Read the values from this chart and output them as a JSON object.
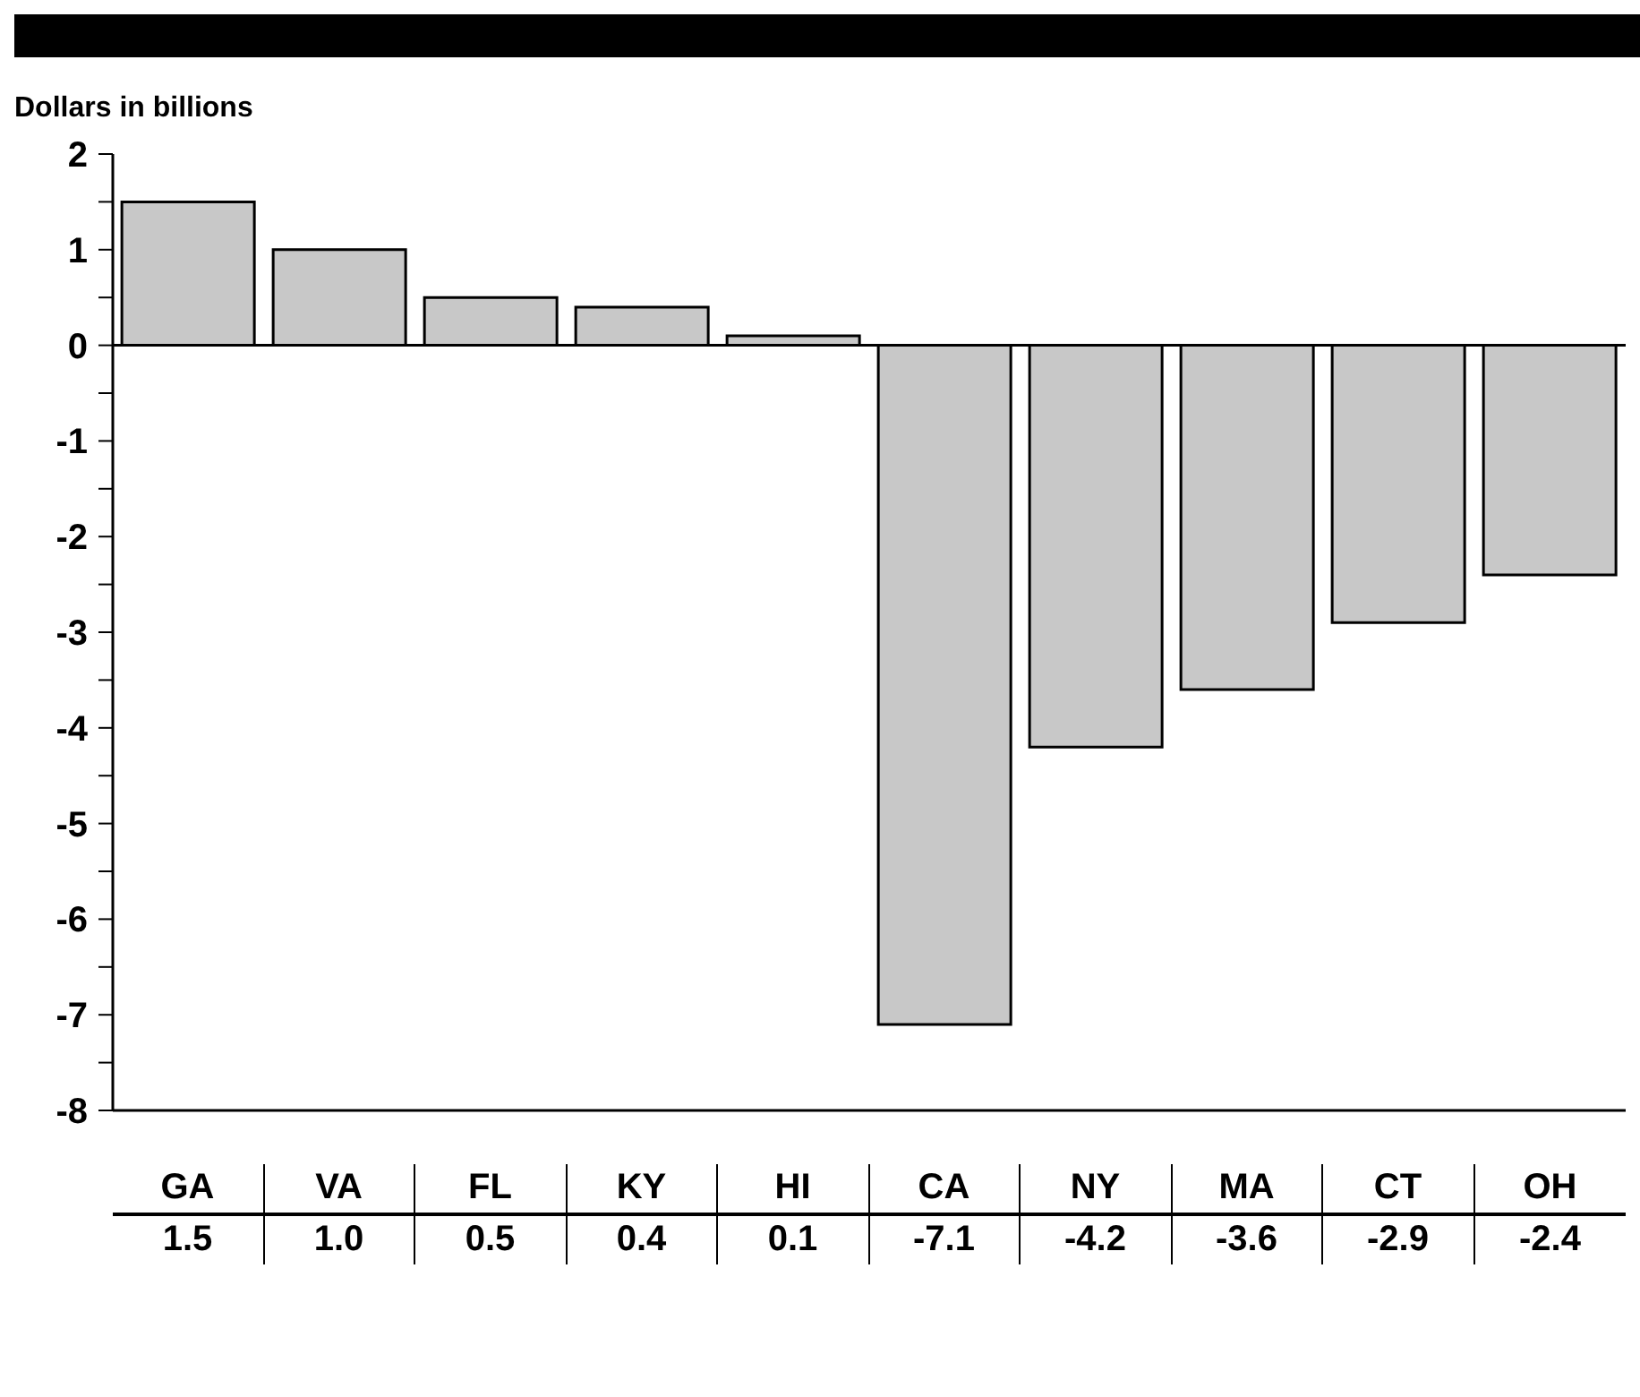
{
  "chart_data": {
    "type": "bar",
    "ylabel": "Dollars in billions",
    "categories": [
      "GA",
      "VA",
      "FL",
      "KY",
      "HI",
      "CA",
      "NY",
      "MA",
      "CT",
      "OH"
    ],
    "values": [
      1.5,
      1.0,
      0.5,
      0.4,
      0.1,
      -7.1,
      -4.2,
      -3.6,
      -2.9,
      -2.4
    ],
    "value_labels": [
      "1.5",
      "1.0",
      "0.5",
      "0.4",
      "0.1",
      "-7.1",
      "-4.2",
      "-3.6",
      "-2.9",
      "-2.4"
    ],
    "color": "#c8c8c8",
    "ylim": [
      -8,
      2
    ],
    "yticks": [
      -8,
      {
        "value": -7.5,
        "label": null
      },
      -7,
      {
        "value": -6.5,
        "label": null
      },
      -6,
      {
        "value": -5.5,
        "label": null
      },
      -5,
      {
        "value": -4.5,
        "label": null
      },
      -4,
      {
        "value": -3.5,
        "label": null
      },
      -3,
      {
        "value": -2.5,
        "label": null
      },
      -2,
      {
        "value": -1.5,
        "label": null
      },
      -1,
      {
        "value": -0.5,
        "label": null
      },
      0,
      {
        "value": 0.5,
        "label": null
      },
      1,
      {
        "value": 1.5,
        "label": null
      },
      2
    ],
    "ref_lines": [
      {
        "axis": "y",
        "value": 0,
        "color": "#000000"
      }
    ],
    "grid": false,
    "legend": false
  }
}
